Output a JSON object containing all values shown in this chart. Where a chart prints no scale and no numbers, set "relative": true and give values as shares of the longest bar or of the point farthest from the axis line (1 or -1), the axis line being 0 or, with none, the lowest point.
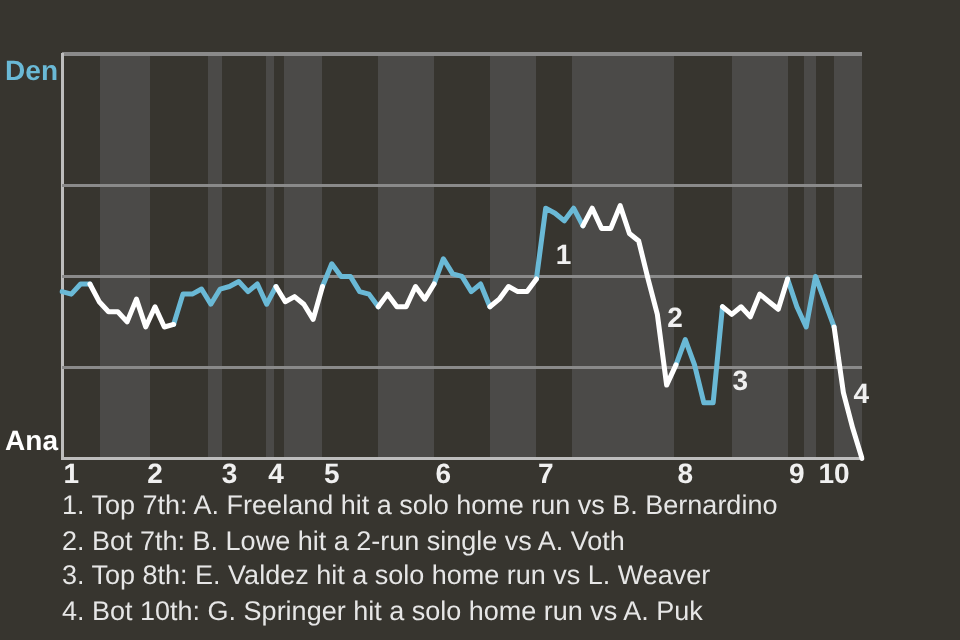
{
  "chart_data": {
    "type": "line",
    "relative": true,
    "categories": [
      null,
      "1",
      null,
      null,
      null,
      null,
      null,
      null,
      null,
      null,
      "2",
      null,
      null,
      null,
      null,
      null,
      null,
      null,
      "3",
      null,
      null,
      null,
      null,
      "4",
      null,
      null,
      null,
      null,
      null,
      "5",
      null,
      null,
      null,
      null,
      null,
      null,
      null,
      null,
      null,
      null,
      null,
      "6",
      null,
      null,
      null,
      null,
      null,
      null,
      null,
      null,
      null,
      null,
      "7",
      null,
      null,
      null,
      null,
      null,
      null,
      null,
      null,
      null,
      null,
      null,
      null,
      null,
      null,
      "8",
      null,
      null,
      null,
      null,
      null,
      null,
      null,
      null,
      null,
      null,
      null,
      "9",
      null,
      null,
      null,
      "10",
      null,
      null,
      null
    ],
    "series": [
      {
        "color": "#ffffff",
        "values": [
          null,
          null,
          null,
          0.69,
          0.62,
          0.58,
          0.58,
          0.54,
          0.63,
          0.52,
          0.6,
          0.52,
          0.53,
          null,
          null,
          null,
          null,
          null,
          null,
          null,
          null,
          null,
          null,
          0.68,
          0.62,
          0.64,
          0.61,
          0.55,
          0.68,
          null,
          null,
          null,
          null,
          null,
          0.6,
          0.65,
          0.6,
          0.6,
          0.68,
          0.63,
          0.69,
          null,
          null,
          null,
          null,
          null,
          0.6,
          0.63,
          0.68,
          0.66,
          0.66,
          0.71,
          null,
          null,
          null,
          null,
          0.92,
          0.99,
          0.91,
          0.91,
          1,
          0.89,
          0.86,
          0.71,
          0.57,
          0.29,
          0.37,
          null,
          null,
          null,
          null,
          0.6,
          0.57,
          0.6,
          0.56,
          0.65,
          0.62,
          0.59,
          0.71,
          null,
          null,
          null,
          null,
          0.52,
          0.26,
          0.12,
          0
        ]
      },
      {
        "color": "#6ab9d6",
        "values": [
          0.66,
          0.65,
          0.69,
          0.69,
          null,
          null,
          null,
          null,
          null,
          null,
          null,
          null,
          0.53,
          0.65,
          0.65,
          0.67,
          0.61,
          0.67,
          0.68,
          0.7,
          0.66,
          0.69,
          0.61,
          0.68,
          null,
          null,
          null,
          null,
          0.68,
          0.77,
          0.72,
          0.72,
          0.66,
          0.65,
          0.6,
          null,
          null,
          null,
          null,
          null,
          0.69,
          0.79,
          0.73,
          0.72,
          0.66,
          0.69,
          0.6,
          null,
          null,
          null,
          null,
          0.71,
          0.99,
          0.97,
          0.94,
          0.99,
          0.92,
          null,
          null,
          null,
          null,
          null,
          null,
          null,
          null,
          null,
          0.37,
          0.47,
          0.37,
          0.22,
          0.22,
          0.6,
          null,
          null,
          null,
          null,
          null,
          null,
          0.71,
          0.6,
          0.52,
          0.72,
          0.62,
          0.52,
          null,
          null,
          null
        ]
      }
    ],
    "ref_lines": [
      {
        "axis": "y",
        "value": 0.36,
        "color": "#8a8a8a"
      },
      {
        "axis": "y",
        "value": 0.72,
        "color": "#8a8a8a"
      },
      {
        "axis": "y",
        "value": 1.08,
        "color": "#8a8a8a"
      }
    ],
    "marker": "none",
    "line_style": "solid",
    "annotations": [
      "Den",
      "Ana",
      "1",
      "2",
      "3",
      "4",
      "1. Top 7th: A. Freeland hit a solo home run vs B. Bernardino",
      "2. Bot 7th: B. Lowe hit a 2-run single vs A. Voth",
      "3. Top 8th: E. Valdez hit a solo home run vs L. Weaver",
      "4. Bot 10th: G. Springer hit a solo home run vs A. Puk"
    ]
  }
}
